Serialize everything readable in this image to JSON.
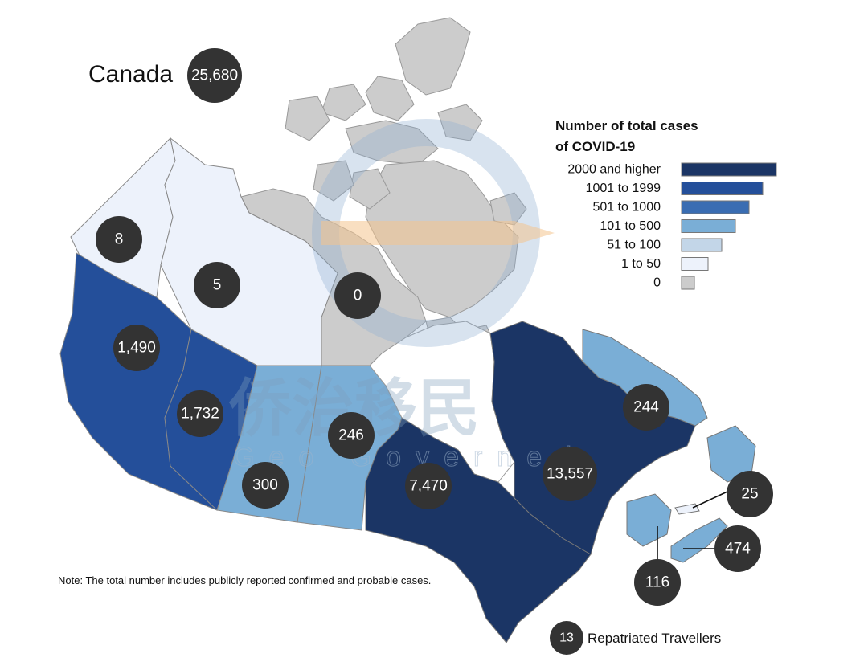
{
  "country": {
    "name": "Canada",
    "total": "25,680"
  },
  "legend": {
    "title_line1": "Number of total cases",
    "title_line2": "of COVID-19",
    "items": [
      {
        "label": "2000 and higher",
        "color": "#1b3565"
      },
      {
        "label": "1001 to 1999",
        "color": "#244f9a"
      },
      {
        "label": "501 to 1000",
        "color": "#3a6db2"
      },
      {
        "label": "101 to 500",
        "color": "#7aaed6"
      },
      {
        "label": "51 to 100",
        "color": "#c3d6e8"
      },
      {
        "label": "1 to 50",
        "color": "#edf2fb"
      },
      {
        "label": "0",
        "color": "#cccccc"
      }
    ]
  },
  "regions": {
    "yukon": {
      "cases": "8",
      "color": "#edf2fb"
    },
    "northwest_territories": {
      "cases": "5",
      "color": "#edf2fb"
    },
    "nunavut": {
      "cases": "0",
      "color": "#cccccc"
    },
    "british_columbia": {
      "cases": "1,490",
      "color": "#244f9a"
    },
    "alberta": {
      "cases": "1,732",
      "color": "#244f9a"
    },
    "saskatchewan": {
      "cases": "300",
      "color": "#7aaed6"
    },
    "manitoba": {
      "cases": "246",
      "color": "#7aaed6"
    },
    "ontario": {
      "cases": "7,470",
      "color": "#1b3565"
    },
    "quebec": {
      "cases": "13,557",
      "color": "#1b3565"
    },
    "newfoundland_labrador": {
      "cases": "244",
      "color": "#7aaed6"
    },
    "prince_edward_island": {
      "cases": "25",
      "color": "#edf2fb"
    },
    "nova_scotia": {
      "cases": "474",
      "color": "#7aaed6"
    },
    "new_brunswick": {
      "cases": "116",
      "color": "#7aaed6"
    }
  },
  "repatriated": {
    "cases": "13",
    "label": "Repatriated Travellers"
  },
  "note": "Note: The total number includes publicly reported confirmed and probable cases.",
  "watermark": {
    "text": "侨治移民",
    "sub": "Geo Governed"
  },
  "colors": {
    "bubble": "#333333",
    "water": "#ffffff",
    "border": "#888888"
  }
}
